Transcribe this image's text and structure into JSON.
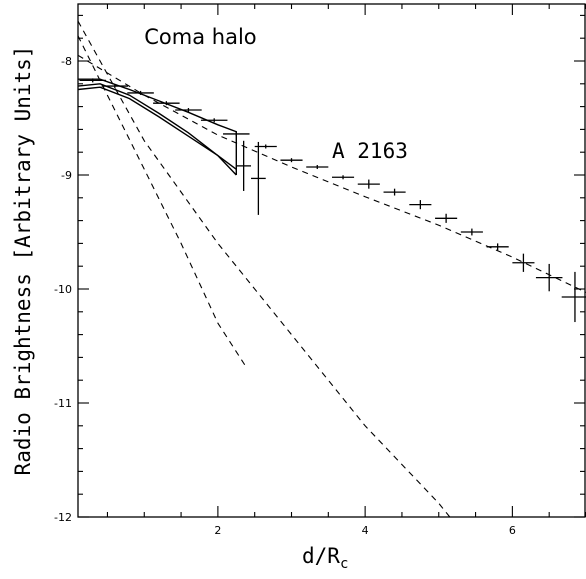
{
  "chart_data": {
    "type": "line",
    "title": "",
    "xlabel": "d/R",
    "xlabel_sub": "c",
    "ylabel": "Radio Brightness [Arbitrary Units]",
    "xlim": [
      0.1,
      7.0
    ],
    "ylim": [
      -12,
      -7.5
    ],
    "x_ticks": [
      2,
      4,
      6
    ],
    "y_ticks": [
      -12,
      -11,
      -10,
      -9,
      -8
    ],
    "grid": false,
    "annotations": [
      {
        "text": "Coma halo",
        "x": 1.0,
        "y": -7.85,
        "font": "sans"
      },
      {
        "text": "A 2163",
        "x": 3.55,
        "y": -8.85,
        "font": "mono"
      }
    ],
    "series": [
      {
        "style": "errorbars",
        "points": [
          {
            "x": 0.3,
            "y": -8.17,
            "xerr": 0.18,
            "yerr": 0.0
          },
          {
            "x": 0.6,
            "y": -8.22,
            "xerr": 0.18,
            "yerr": 0.0
          },
          {
            "x": 0.95,
            "y": -8.28,
            "xerr": 0.18,
            "yerr": 0.0
          },
          {
            "x": 1.3,
            "y": -8.37,
            "xerr": 0.18,
            "yerr": 0.0
          },
          {
            "x": 1.6,
            "y": -8.43,
            "xerr": 0.18,
            "yerr": 0.0
          },
          {
            "x": 1.95,
            "y": -8.52,
            "xerr": 0.18,
            "yerr": 0.0
          },
          {
            "x": 2.25,
            "y": -8.64,
            "xerr": 0.18,
            "yerr": 0.0
          },
          {
            "x": 2.35,
            "y": -8.92,
            "xerr": 0.1,
            "yerr": 0.22
          },
          {
            "x": 2.55,
            "y": -9.03,
            "xerr": 0.1,
            "yerr": 0.32
          },
          {
            "x": 2.65,
            "y": -8.75,
            "xerr": 0.15,
            "yerr": 0.0
          },
          {
            "x": 3.0,
            "y": -8.87,
            "xerr": 0.15,
            "yerr": 0.0
          },
          {
            "x": 3.35,
            "y": -8.93,
            "xerr": 0.15,
            "yerr": 0.0
          },
          {
            "x": 3.7,
            "y": -9.02,
            "xerr": 0.15,
            "yerr": 0.0
          },
          {
            "x": 4.05,
            "y": -9.08,
            "xerr": 0.15,
            "yerr": 0.04
          },
          {
            "x": 4.4,
            "y": -9.15,
            "xerr": 0.15,
            "yerr": 0.03
          },
          {
            "x": 4.75,
            "y": -9.26,
            "xerr": 0.15,
            "yerr": 0.04
          },
          {
            "x": 5.1,
            "y": -9.38,
            "xerr": 0.15,
            "yerr": 0.04
          },
          {
            "x": 5.45,
            "y": -9.5,
            "xerr": 0.15,
            "yerr": 0.03
          },
          {
            "x": 5.8,
            "y": -9.63,
            "xerr": 0.15,
            "yerr": 0.03
          },
          {
            "x": 6.15,
            "y": -9.77,
            "xerr": 0.15,
            "yerr": 0.08
          },
          {
            "x": 6.5,
            "y": -9.9,
            "xerr": 0.18,
            "yerr": 0.12
          },
          {
            "x": 6.85,
            "y": -10.07,
            "xerr": 0.18,
            "yerr": 0.22
          }
        ]
      },
      {
        "style": "dashed",
        "x": [
          0.1,
          1.0,
          2.0,
          3.0,
          4.0,
          5.0,
          6.0,
          7.0
        ],
        "y": [
          -7.95,
          -8.3,
          -8.65,
          -8.93,
          -9.19,
          -9.44,
          -9.72,
          -10.03
        ]
      },
      {
        "style": "dashed",
        "x": [
          0.1,
          0.5,
          1.0,
          1.5,
          2.0,
          2.4
        ],
        "y": [
          -7.78,
          -8.3,
          -8.95,
          -9.6,
          -10.3,
          -10.7
        ]
      },
      {
        "style": "dashed",
        "x": [
          0.1,
          1.0,
          2.0,
          3.0,
          4.0,
          5.0,
          5.15
        ],
        "y": [
          -7.65,
          -8.7,
          -9.6,
          -10.4,
          -11.2,
          -11.88,
          -12.0
        ]
      },
      {
        "style": "solid",
        "x": [
          0.1,
          0.4,
          0.8,
          1.2,
          1.6,
          2.0,
          2.25,
          2.25,
          2.25
        ],
        "y": [
          -8.16,
          -8.16,
          -8.25,
          -8.35,
          -8.45,
          -8.56,
          -8.62,
          -8.8,
          -9.0
        ]
      },
      {
        "style": "solid",
        "x": [
          0.1,
          0.4,
          0.8,
          1.2,
          1.6,
          2.0,
          2.25
        ],
        "y": [
          -8.22,
          -8.2,
          -8.3,
          -8.46,
          -8.63,
          -8.83,
          -9.0
        ]
      },
      {
        "style": "solid",
        "x": [
          0.1,
          0.4,
          0.8,
          1.2,
          1.6,
          2.0,
          2.25
        ],
        "y": [
          -8.25,
          -8.23,
          -8.33,
          -8.49,
          -8.66,
          -8.83,
          -8.95
        ]
      }
    ]
  }
}
